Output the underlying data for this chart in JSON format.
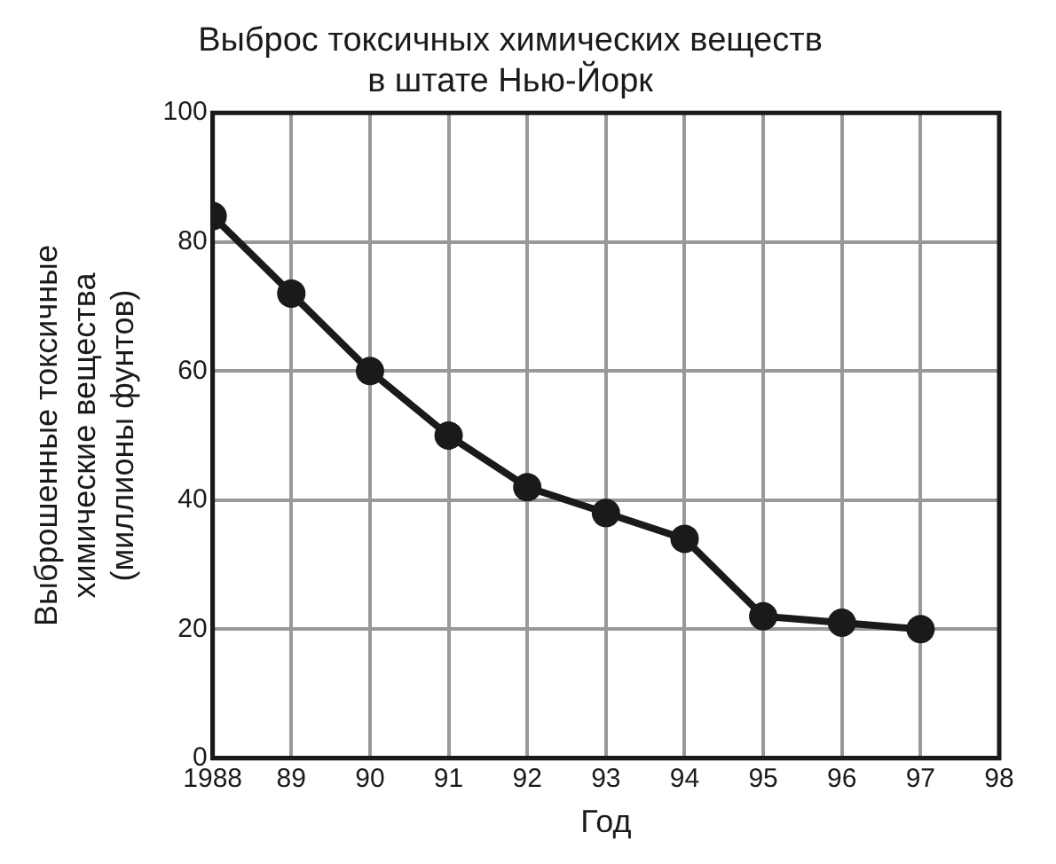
{
  "chart_data": {
    "type": "line",
    "title": "Выброс токсичных химических веществ\nв штате Нью-Йорк",
    "xlabel": "Год",
    "ylabel": "Выброшенные токсичные\nхимические вещества\n(миллионы фунтов)",
    "x": [
      1988,
      1989,
      1990,
      1991,
      1992,
      1993,
      1994,
      1995,
      1996,
      1997
    ],
    "series": [
      {
        "color": "#1a1a1a",
        "values": [
          84,
          72,
          60,
          50,
          42,
          38,
          34,
          22,
          21,
          20
        ]
      }
    ],
    "xlim": [
      1988,
      1998
    ],
    "xticks": [
      {
        "value": 1988,
        "label": "1988"
      },
      {
        "value": 1989,
        "label": "89"
      },
      {
        "value": 1990,
        "label": "90"
      },
      {
        "value": 1991,
        "label": "91"
      },
      {
        "value": 1992,
        "label": "92"
      },
      {
        "value": 1993,
        "label": "93"
      },
      {
        "value": 1994,
        "label": "94"
      },
      {
        "value": 1995,
        "label": "95"
      },
      {
        "value": 1996,
        "label": "96"
      },
      {
        "value": 1997,
        "label": "97"
      },
      {
        "value": 1998,
        "label": "98"
      }
    ],
    "ylim": [
      0,
      100
    ],
    "yticks": [
      0,
      20,
      40,
      60,
      80,
      100
    ],
    "grid": true,
    "marker": "circle",
    "line_style": "solid",
    "legend": false
  }
}
